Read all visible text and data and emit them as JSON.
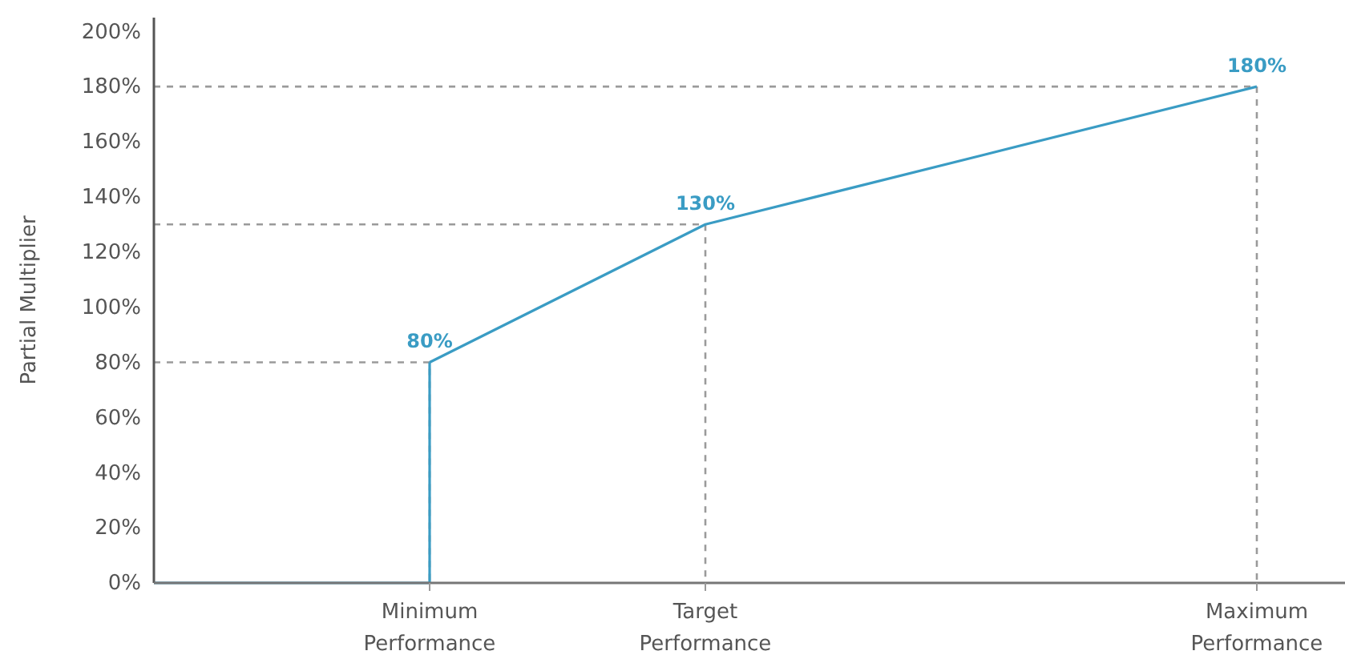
{
  "chart_data": {
    "type": "line",
    "ylabel": "Partial Multiplier",
    "categories": [
      null,
      "Minimum Performance",
      "Target Performance",
      null,
      "Maximum Performance"
    ],
    "ylim": [
      0,
      205
    ],
    "yticks": [
      {
        "value": 0,
        "label": "0%"
      },
      {
        "value": 20,
        "label": "20%"
      },
      {
        "value": 40,
        "label": "40%"
      },
      {
        "value": 60,
        "label": "60%"
      },
      {
        "value": 80,
        "label": "80%"
      },
      {
        "value": 100,
        "label": "100%"
      },
      {
        "value": 120,
        "label": "120%"
      },
      {
        "value": 140,
        "label": "140%"
      },
      {
        "value": 160,
        "label": "160%"
      },
      {
        "value": 180,
        "label": "180%"
      },
      {
        "value": 200,
        "label": "200%"
      }
    ],
    "grid": false,
    "marker": "none",
    "series": [
      {
        "type": "step",
        "color": "#9a9a9a",
        "line_style": "dashed",
        "values": [
          80,
          0,
          null,
          null,
          null
        ]
      },
      {
        "type": "step",
        "color": "#9a9a9a",
        "line_style": "dashed",
        "values": [
          130,
          130,
          0,
          null,
          null
        ]
      },
      {
        "type": "step",
        "color": "#9a9a9a",
        "line_style": "dashed",
        "values": [
          180,
          180,
          180,
          180,
          0
        ]
      },
      {
        "type": "step",
        "color": "#3a9cc4",
        "line_style": "solid",
        "values": [
          0,
          80,
          null,
          null,
          null
        ]
      },
      {
        "color": "#3a9cc4",
        "line_style": "solid",
        "values": [
          null,
          80,
          130,
          155,
          180
        ],
        "value_labels": [
          null,
          "80%",
          "130%",
          null,
          "180%"
        ]
      }
    ]
  }
}
